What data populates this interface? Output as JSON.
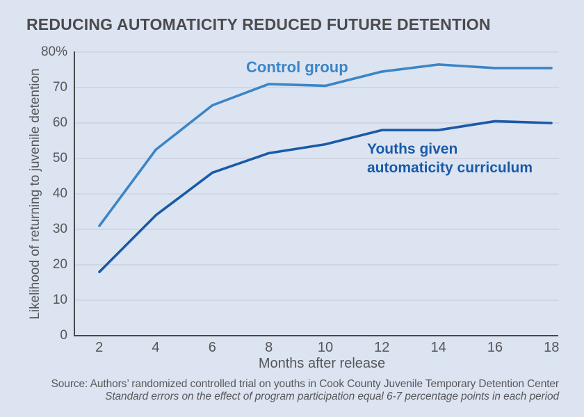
{
  "title": "REDUCING AUTOMATICITY REDUCED FUTURE DETENTION",
  "chart_data": {
    "type": "line",
    "x": [
      2,
      4,
      6,
      8,
      10,
      12,
      14,
      16,
      18
    ],
    "x_tick_labels": [
      "2",
      "4",
      "6",
      "8",
      "10",
      "12",
      "14",
      "16",
      "18"
    ],
    "y_tick_labels": [
      "80%",
      "70",
      "60",
      "50",
      "40",
      "30",
      "20",
      "10",
      "0"
    ],
    "xlabel": "Months after release",
    "ylabel": "Likelihood of returning to juvenile detention",
    "xlim": [
      2,
      18
    ],
    "ylim": [
      0,
      80
    ],
    "grid": "horizontal-only",
    "legend_position": "inline-annotations",
    "series": [
      {
        "name": "Control group",
        "color": "#3c85c6",
        "values": [
          31,
          52.5,
          65,
          71,
          70.5,
          74.5,
          76.5,
          75.5,
          75.5
        ]
      },
      {
        "name": "Youths given automaticity curriculum",
        "color": "#1a5aa8",
        "values": [
          18,
          34,
          46,
          51.5,
          54,
          58,
          58,
          60.5,
          60
        ]
      }
    ]
  },
  "legend": {
    "control_label": "Control group",
    "treatment_label_line1": "Youths given",
    "treatment_label_line2": "automaticity curriculum"
  },
  "source": {
    "line1": "Source: Authors’ randomized controlled trial on youths in Cook County Juvenile Temporary Detention Center",
    "line2": "Standard errors on the effect of program participation equal 6-7 percentage points in each period"
  },
  "colors": {
    "background": "#dce4f1",
    "control_line": "#3c85c6",
    "treatment_line": "#1a5aa8",
    "title_text": "#4b4b4d",
    "axis_text": "#55565a",
    "gridline": "#c3c9d4",
    "axis_line": "#47484a"
  }
}
